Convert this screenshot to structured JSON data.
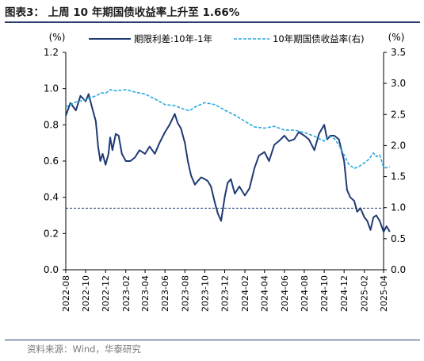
{
  "title": "图表3：  上周 10 年期国债收益率上升至 1.66%",
  "source": "资料来源：Wind，华泰研究",
  "colors": {
    "spread": "#1f3a73",
    "yield10y": "#29a8e0",
    "refline": "#1f3a73",
    "rule": "#2a3f6e"
  },
  "chart_data": {
    "type": "line",
    "title": "上周 10 年期国债收益率上升至 1.66%",
    "x_categories": [
      "2022-08",
      "2022-10",
      "2022-12",
      "2023-02",
      "2023-04",
      "2023-06",
      "2023-08",
      "2023-10",
      "2023-12",
      "2024-02",
      "2024-04",
      "2024-06",
      "2024-08",
      "2024-10",
      "2024-12",
      "2025-02",
      "2025-04"
    ],
    "left_axis": {
      "unit": "(%)",
      "ylim": [
        0,
        1.2
      ],
      "ticks": [
        "0.0",
        "0.2",
        "0.4",
        "0.6",
        "0.8",
        "1.0",
        "1.2"
      ]
    },
    "right_axis": {
      "unit": "(%)",
      "ylim": [
        0,
        3.5
      ],
      "ticks": [
        "0.0",
        "0.5",
        "1.0",
        "1.5",
        "2.0",
        "2.5",
        "3.0",
        "3.5"
      ]
    },
    "reference_line": {
      "axis": "left",
      "value": 0.34,
      "style": "dashed"
    },
    "grid": false,
    "legend_position": "top",
    "series": [
      {
        "name": "期限利差:10年-1年",
        "axis": "left",
        "style": "solid",
        "points": [
          [
            "2022-08",
            0.85
          ],
          [
            "2022-08-15",
            0.92
          ],
          [
            "2022-09",
            0.88
          ],
          [
            "2022-09-15",
            0.96
          ],
          [
            "2022-10",
            0.93
          ],
          [
            "2022-10-10",
            0.97
          ],
          [
            "2022-10-20",
            0.9
          ],
          [
            "2022-11",
            0.82
          ],
          [
            "2022-11-08",
            0.68
          ],
          [
            "2022-11-15",
            0.6
          ],
          [
            "2022-11-22",
            0.64
          ],
          [
            "2022-12",
            0.58
          ],
          [
            "2022-12-10",
            0.64
          ],
          [
            "2022-12-15",
            0.73
          ],
          [
            "2022-12-22",
            0.66
          ],
          [
            "2023-01",
            0.75
          ],
          [
            "2023-01-10",
            0.74
          ],
          [
            "2023-01-20",
            0.64
          ],
          [
            "2023-02",
            0.6
          ],
          [
            "2023-02-15",
            0.6
          ],
          [
            "2023-03",
            0.62
          ],
          [
            "2023-03-15",
            0.66
          ],
          [
            "2023-04",
            0.64
          ],
          [
            "2023-04-15",
            0.68
          ],
          [
            "2023-05",
            0.64
          ],
          [
            "2023-05-15",
            0.7
          ],
          [
            "2023-06",
            0.76
          ],
          [
            "2023-06-15",
            0.8
          ],
          [
            "2023-07",
            0.86
          ],
          [
            "2023-07-10",
            0.81
          ],
          [
            "2023-07-20",
            0.78
          ],
          [
            "2023-08",
            0.7
          ],
          [
            "2023-08-10",
            0.6
          ],
          [
            "2023-08-20",
            0.52
          ],
          [
            "2023-09",
            0.47
          ],
          [
            "2023-09-10",
            0.49
          ],
          [
            "2023-09-20",
            0.51
          ],
          [
            "2023-10",
            0.5
          ],
          [
            "2023-10-10",
            0.49
          ],
          [
            "2023-10-20",
            0.46
          ],
          [
            "2023-11",
            0.37
          ],
          [
            "2023-11-10",
            0.31
          ],
          [
            "2023-11-20",
            0.27
          ],
          [
            "2023-12",
            0.4
          ],
          [
            "2023-12-10",
            0.48
          ],
          [
            "2023-12-20",
            0.5
          ],
          [
            "2024-01",
            0.42
          ],
          [
            "2024-01-15",
            0.46
          ],
          [
            "2024-02",
            0.41
          ],
          [
            "2024-02-15",
            0.45
          ],
          [
            "2024-03",
            0.56
          ],
          [
            "2024-03-15",
            0.63
          ],
          [
            "2024-04",
            0.65
          ],
          [
            "2024-04-15",
            0.6
          ],
          [
            "2024-05",
            0.69
          ],
          [
            "2024-05-15",
            0.71
          ],
          [
            "2024-06",
            0.74
          ],
          [
            "2024-06-15",
            0.71
          ],
          [
            "2024-07",
            0.72
          ],
          [
            "2024-07-15",
            0.76
          ],
          [
            "2024-08",
            0.74
          ],
          [
            "2024-08-15",
            0.72
          ],
          [
            "2024-09",
            0.66
          ],
          [
            "2024-09-15",
            0.75
          ],
          [
            "2024-10",
            0.8
          ],
          [
            "2024-10-10",
            0.72
          ],
          [
            "2024-10-20",
            0.74
          ],
          [
            "2024-11",
            0.74
          ],
          [
            "2024-11-15",
            0.72
          ],
          [
            "2024-12",
            0.6
          ],
          [
            "2024-12-10",
            0.44
          ],
          [
            "2024-12-20",
            0.4
          ],
          [
            "2025-01",
            0.38
          ],
          [
            "2025-01-10",
            0.32
          ],
          [
            "2025-01-20",
            0.34
          ],
          [
            "2025-02",
            0.29
          ],
          [
            "2025-02-10",
            0.27
          ],
          [
            "2025-02-20",
            0.22
          ],
          [
            "2025-03",
            0.29
          ],
          [
            "2025-03-10",
            0.3
          ],
          [
            "2025-03-20",
            0.27
          ],
          [
            "2025-04",
            0.21
          ],
          [
            "2025-04-10",
            0.24
          ],
          [
            "2025-04-20",
            0.21
          ]
        ]
      },
      {
        "name": "10年期国债收益率(右)",
        "axis": "right",
        "style": "dashed",
        "points": [
          [
            "2022-08",
            2.62
          ],
          [
            "2022-09",
            2.7
          ],
          [
            "2022-10",
            2.74
          ],
          [
            "2022-11",
            2.8
          ],
          [
            "2022-11-20",
            2.85
          ],
          [
            "2022-12",
            2.84
          ],
          [
            "2022-12-15",
            2.9
          ],
          [
            "2023-01",
            2.88
          ],
          [
            "2023-02",
            2.9
          ],
          [
            "2023-03",
            2.86
          ],
          [
            "2023-04",
            2.83
          ],
          [
            "2023-05",
            2.75
          ],
          [
            "2023-06",
            2.66
          ],
          [
            "2023-07",
            2.64
          ],
          [
            "2023-08",
            2.58
          ],
          [
            "2023-08-15",
            2.56
          ],
          [
            "2023-09",
            2.62
          ],
          [
            "2023-10",
            2.69
          ],
          [
            "2023-11",
            2.66
          ],
          [
            "2023-12",
            2.57
          ],
          [
            "2024-01",
            2.49
          ],
          [
            "2024-02",
            2.39
          ],
          [
            "2024-03",
            2.3
          ],
          [
            "2024-04",
            2.28
          ],
          [
            "2024-05",
            2.31
          ],
          [
            "2024-06",
            2.25
          ],
          [
            "2024-07",
            2.25
          ],
          [
            "2024-08",
            2.21
          ],
          [
            "2024-09",
            2.15
          ],
          [
            "2024-10",
            2.07
          ],
          [
            "2024-10-15",
            2.16
          ],
          [
            "2024-11",
            2.11
          ],
          [
            "2024-11-15",
            2.01
          ],
          [
            "2024-12",
            1.85
          ],
          [
            "2024-12-15",
            1.7
          ],
          [
            "2025-01",
            1.63
          ],
          [
            "2025-01-15",
            1.66
          ],
          [
            "2025-02",
            1.72
          ],
          [
            "2025-02-15",
            1.78
          ],
          [
            "2025-03",
            1.88
          ],
          [
            "2025-03-10",
            1.82
          ],
          [
            "2025-03-20",
            1.85
          ],
          [
            "2025-04",
            1.65
          ],
          [
            "2025-04-10",
            1.64
          ],
          [
            "2025-04-20",
            1.66
          ]
        ]
      }
    ]
  }
}
